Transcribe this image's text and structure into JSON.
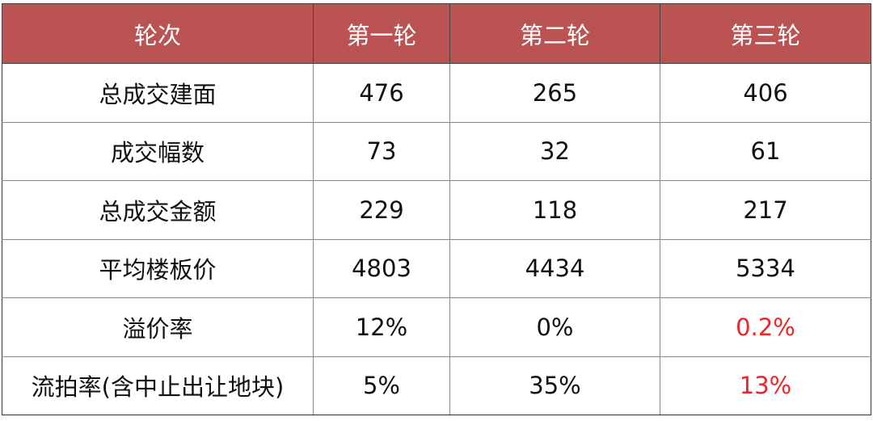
{
  "table": {
    "headers": [
      "轮次",
      "第一轮",
      "第二轮",
      "第三轮"
    ],
    "rows": [
      {
        "label": "总成交建面",
        "values": [
          "476",
          "265",
          "406"
        ]
      },
      {
        "label": "成交幅数",
        "values": [
          "73",
          "32",
          "61"
        ]
      },
      {
        "label": "总成交金额",
        "values": [
          "229",
          "118",
          "217"
        ]
      },
      {
        "label": "平均楼板价",
        "values": [
          "4803",
          "4434",
          "5334"
        ]
      },
      {
        "label": "溢价率",
        "values": [
          "12%",
          "0%",
          "0.2%"
        ]
      },
      {
        "label": "流拍率(含中止出让地块)",
        "values": [
          "5%",
          "35%",
          "13%"
        ]
      }
    ]
  },
  "colors": {
    "header_bg": "#BC5353",
    "header_text": "#FFFFFF",
    "highlight": "#E8262B"
  }
}
